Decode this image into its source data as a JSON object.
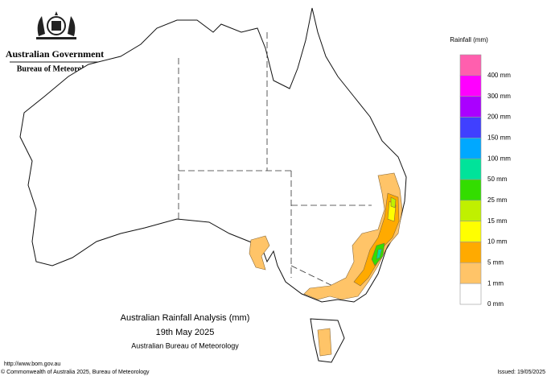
{
  "header": {
    "government": "Australian Government",
    "bureau": "Bureau of Meteorology"
  },
  "legend": {
    "title": "Rainfall (mm)",
    "items": [
      {
        "color": "#ff5fae",
        "label": "400 mm"
      },
      {
        "color": "#ff00ff",
        "label": "300 mm"
      },
      {
        "color": "#aa00ff",
        "label": "200 mm"
      },
      {
        "color": "#4040ff",
        "label": "150 mm"
      },
      {
        "color": "#00a8ff",
        "label": "100 mm"
      },
      {
        "color": "#00e39a",
        "label": "50 mm"
      },
      {
        "color": "#33dd00",
        "label": "25 mm"
      },
      {
        "color": "#c0f000",
        "label": "15 mm"
      },
      {
        "color": "#ffff00",
        "label": "10 mm"
      },
      {
        "color": "#ffaa00",
        "label": "5 mm"
      },
      {
        "color": "#ffc468",
        "label": "1 mm"
      },
      {
        "color": "#ffffff",
        "label": "0 mm"
      }
    ]
  },
  "map_title": {
    "line1": "Australian Rainfall Analysis (mm)",
    "line2": "19th May 2025",
    "line3": "Australian Bureau of Meteorology"
  },
  "footer": {
    "url": "http://www.bom.gov.au",
    "copyright": "© Commonwealth of Australia 2025, Bureau of Meteorology",
    "issued": "Issued: 19/05/2025"
  }
}
